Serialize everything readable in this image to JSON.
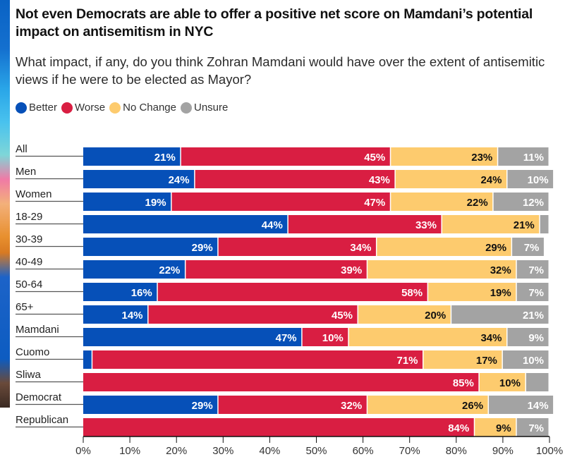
{
  "chart_data": {
    "type": "bar",
    "orientation": "horizontal",
    "stacked": true,
    "title": "Not even Democrats are able to offer a positive net score on Mamdani’s potential impact on antisemitism in NYC",
    "subtitle": "What impact, if any, do you think Zohran Mamdani would have over the extent of antisemitic views if he were to be elected as Mayor?",
    "categories": [
      "All",
      "Men",
      "Women",
      "18-29",
      "30-39",
      "40-49",
      "50-64",
      "65+",
      "Mamdani",
      "Cuomo",
      "Sliwa",
      "Democrat",
      "Republican"
    ],
    "series": [
      {
        "name": "Better",
        "color": "#0650B8",
        "label_color": "#ffffff",
        "values": [
          21,
          24,
          19,
          44,
          29,
          22,
          16,
          14,
          47,
          2,
          0,
          29,
          0
        ],
        "labels": [
          "21%",
          "24%",
          "19%",
          "44%",
          "29%",
          "22%",
          "16%",
          "14%",
          "47%",
          "",
          "",
          "29%",
          ""
        ]
      },
      {
        "name": "Worse",
        "color": "#D91E42",
        "label_color": "#ffffff",
        "values": [
          45,
          43,
          47,
          33,
          34,
          39,
          58,
          45,
          10,
          71,
          85,
          32,
          84
        ],
        "labels": [
          "45%",
          "43%",
          "47%",
          "33%",
          "34%",
          "39%",
          "58%",
          "45%",
          "10%",
          "71%",
          "85%",
          "32%",
          "84%"
        ]
      },
      {
        "name": "No Change",
        "color": "#FDCB6E",
        "label_color": "#111111",
        "values": [
          23,
          24,
          22,
          21,
          29,
          32,
          19,
          20,
          34,
          17,
          10,
          26,
          9
        ],
        "labels": [
          "23%",
          "24%",
          "22%",
          "21%",
          "29%",
          "32%",
          "19%",
          "20%",
          "34%",
          "17%",
          "10%",
          "26%",
          "9%"
        ]
      },
      {
        "name": "Unsure",
        "color": "#A3A3A3",
        "label_color": "#ffffff",
        "values": [
          11,
          10,
          12,
          2,
          7,
          7,
          7,
          21,
          9,
          10,
          5,
          14,
          7
        ],
        "labels": [
          "11%",
          "10%",
          "12%",
          "",
          "7%",
          "7%",
          "7%",
          "21%",
          "9%",
          "10%",
          "",
          "14%",
          "7%"
        ]
      }
    ],
    "xlim": [
      0,
      100
    ],
    "xticks": [
      "0%",
      "10%",
      "20%",
      "30%",
      "40%",
      "50%",
      "60%",
      "70%",
      "80%",
      "90%",
      "100%"
    ],
    "xlabel": "",
    "ylabel": "",
    "legend_position": "top-left",
    "grid": false
  }
}
